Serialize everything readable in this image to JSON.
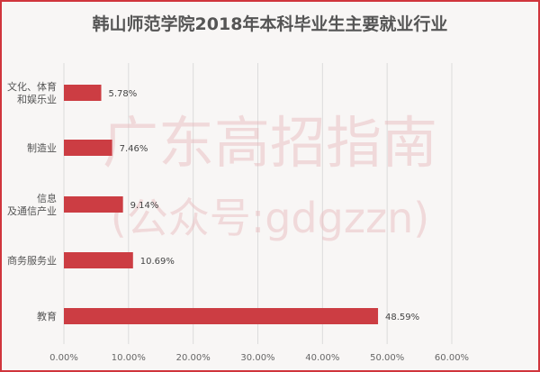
{
  "chart_data": {
    "type": "bar",
    "orientation": "horizontal",
    "title": "韩山师范学院2018年本科毕业生主要就业行业",
    "categories": [
      [
        "文化、体育",
        "和娱乐业"
      ],
      [
        "制造业"
      ],
      [
        "信息",
        "及通信产业"
      ],
      [
        "商务服务业"
      ],
      [
        "教育"
      ]
    ],
    "values": [
      5.78,
      7.46,
      9.14,
      10.69,
      48.59
    ],
    "data_labels": [
      "5.78%",
      "7.46%",
      "9.14%",
      "10.69%",
      "48.59%"
    ],
    "xlim": [
      0,
      60
    ],
    "x_ticks": [
      "0.00%",
      "10.00%",
      "20.00%",
      "30.00%",
      "40.00%",
      "50.00%",
      "60.00%"
    ],
    "grid": true,
    "bar_color": "#cc3d43",
    "frame_color": "#d0353c"
  },
  "watermark": {
    "line1": "广东高招指南",
    "line2": "(公众号:gdgzzn)"
  }
}
